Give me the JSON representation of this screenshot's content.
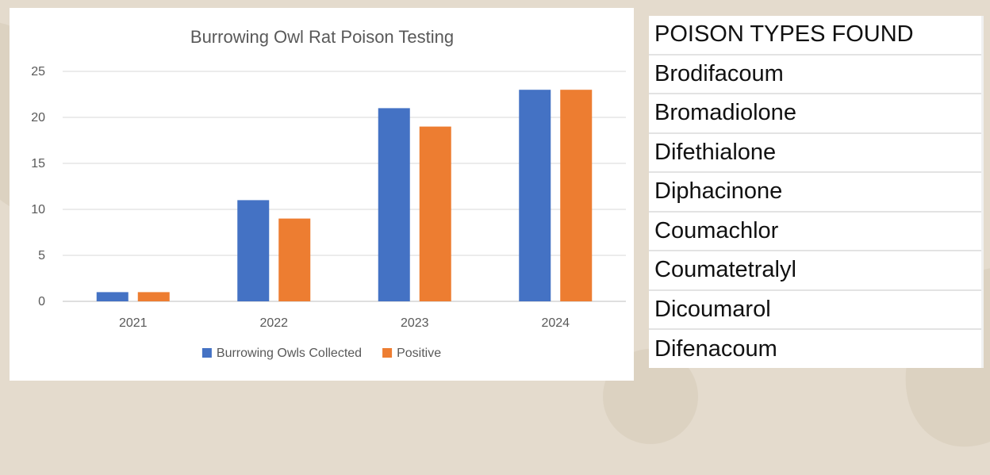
{
  "chart_data": {
    "type": "bar",
    "title": "Burrowing Owl Rat Poison Testing",
    "categories": [
      "2021",
      "2022",
      "2023",
      "2024"
    ],
    "series": [
      {
        "name": "Burrowing Owls Collected",
        "color": "#4472c4",
        "values": [
          1,
          11,
          21,
          23
        ]
      },
      {
        "name": "Positive",
        "color": "#ed7d31",
        "values": [
          1,
          9,
          19,
          23
        ]
      }
    ],
    "ylim": [
      0,
      25
    ],
    "yticks": [
      "0",
      "5",
      "10",
      "15",
      "20",
      "25"
    ],
    "xlabel": "",
    "ylabel": "",
    "grid": true,
    "legend": "bottom-center"
  },
  "poison_table": {
    "header": "POISON TYPES FOUND",
    "items": [
      "Brodifacoum",
      "Bromadiolone",
      "Difethialone",
      "Diphacinone",
      "Coumachlor",
      "Coumatetralyl",
      "Dicoumarol",
      "Difenacoum"
    ]
  }
}
